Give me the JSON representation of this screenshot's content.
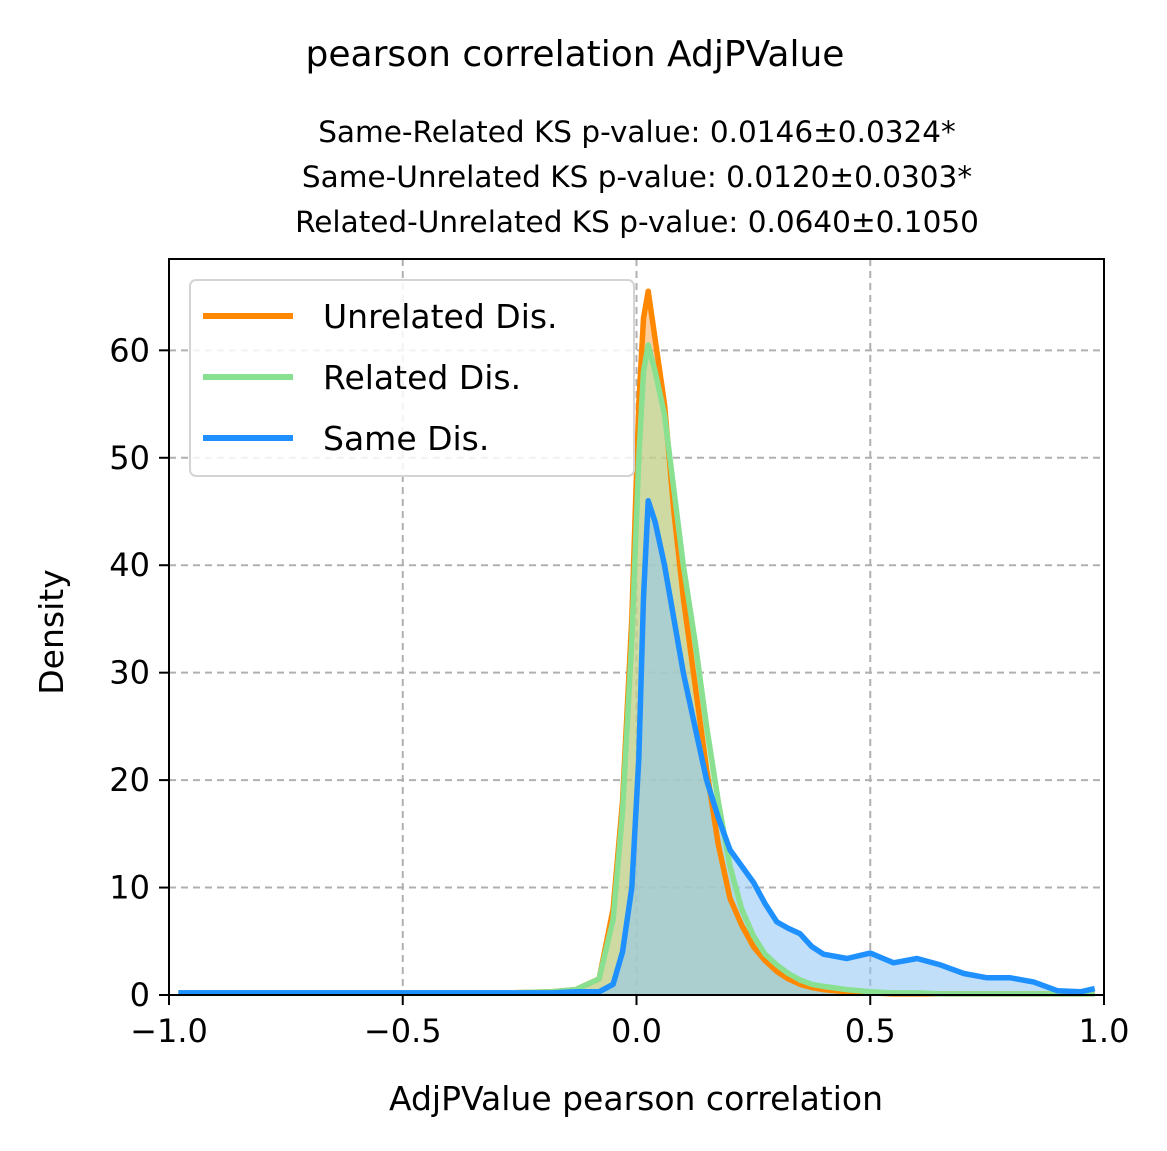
{
  "chart_data": {
    "type": "area",
    "title": "pearson correlation AdjPValue",
    "subtitle_lines": [
      "Same-Related KS p-value: 0.0146±0.0324*",
      "Same-Unrelated KS p-value: 0.0120±0.0303*",
      "Related-Unrelated KS p-value: 0.0640±0.1050"
    ],
    "xlabel": "AdjPValue pearson correlation",
    "ylabel": "Density",
    "xlim": [
      -1.0,
      1.0
    ],
    "ylim": [
      0,
      68.5
    ],
    "xticks": [
      -1.0,
      -0.5,
      0.0,
      0.5,
      1.0
    ],
    "xtick_labels": [
      "−1.0",
      "−0.5",
      "0.0",
      "0.5",
      "1.0"
    ],
    "yticks": [
      0,
      10,
      20,
      30,
      40,
      50,
      60
    ],
    "ytick_labels": [
      "0",
      "10",
      "20",
      "30",
      "40",
      "50",
      "60"
    ],
    "grid": true,
    "legend_position": "top-left",
    "series": [
      {
        "name": "Unrelated Dis.",
        "color": "#ff8800",
        "fill": "#ffa54f",
        "x": [
          -0.98,
          -0.88,
          -0.78,
          -0.68,
          -0.58,
          -0.48,
          -0.38,
          -0.28,
          -0.18,
          -0.13,
          -0.08,
          -0.05,
          -0.03,
          -0.01,
          0.005,
          0.015,
          0.025,
          0.04,
          0.06,
          0.08,
          0.1,
          0.125,
          0.15,
          0.175,
          0.2,
          0.225,
          0.25,
          0.275,
          0.3,
          0.325,
          0.35,
          0.375,
          0.4,
          0.45,
          0.5,
          0.55,
          0.6,
          0.65,
          0.7,
          0.75,
          0.8,
          0.85,
          0.9,
          0.95,
          0.98
        ],
        "y": [
          0.2,
          0.2,
          0.2,
          0.2,
          0.2,
          0.2,
          0.2,
          0.2,
          0.3,
          0.5,
          1.5,
          8,
          18,
          35,
          55,
          63,
          65.5,
          61,
          55,
          45,
          37,
          29,
          21,
          14,
          9,
          6.5,
          4.5,
          3.2,
          2.2,
          1.5,
          1.0,
          0.7,
          0.5,
          0.3,
          0.2,
          0.1,
          0.1,
          0.1,
          0.1,
          0.1,
          0.1,
          0.1,
          0.1,
          0.1,
          0.1
        ]
      },
      {
        "name": "Related Dis.",
        "color": "#88e090",
        "fill": "#a8e4a8",
        "x": [
          -0.98,
          -0.88,
          -0.78,
          -0.68,
          -0.58,
          -0.48,
          -0.38,
          -0.28,
          -0.18,
          -0.13,
          -0.08,
          -0.05,
          -0.03,
          -0.01,
          0.005,
          0.015,
          0.025,
          0.04,
          0.06,
          0.08,
          0.1,
          0.125,
          0.15,
          0.175,
          0.2,
          0.225,
          0.25,
          0.275,
          0.3,
          0.325,
          0.35,
          0.375,
          0.4,
          0.45,
          0.5,
          0.55,
          0.6,
          0.65,
          0.7,
          0.75,
          0.8,
          0.85,
          0.9,
          0.95,
          0.98
        ],
        "y": [
          0.2,
          0.2,
          0.2,
          0.2,
          0.2,
          0.2,
          0.2,
          0.2,
          0.3,
          0.5,
          1.5,
          7,
          17,
          33,
          50,
          58,
          60.5,
          58,
          54,
          47,
          40,
          33,
          25,
          18,
          12,
          8,
          5.5,
          3.8,
          2.8,
          2.0,
          1.4,
          1.0,
          0.8,
          0.5,
          0.3,
          0.2,
          0.2,
          0.1,
          0.1,
          0.1,
          0.1,
          0.1,
          0.1,
          0.1,
          0.1
        ]
      },
      {
        "name": "Same Dis.",
        "color": "#1e90ff",
        "fill": "#8ec4f4",
        "x": [
          -0.98,
          -0.88,
          -0.78,
          -0.68,
          -0.58,
          -0.48,
          -0.38,
          -0.28,
          -0.18,
          -0.13,
          -0.08,
          -0.05,
          -0.03,
          -0.01,
          0.005,
          0.015,
          0.025,
          0.04,
          0.06,
          0.08,
          0.1,
          0.125,
          0.15,
          0.175,
          0.2,
          0.225,
          0.25,
          0.275,
          0.3,
          0.325,
          0.35,
          0.375,
          0.4,
          0.45,
          0.5,
          0.55,
          0.6,
          0.65,
          0.7,
          0.75,
          0.8,
          0.85,
          0.9,
          0.95,
          0.98
        ],
        "y": [
          0.2,
          0.2,
          0.2,
          0.2,
          0.2,
          0.2,
          0.2,
          0.2,
          0.2,
          0.3,
          0.3,
          1.0,
          4,
          10,
          22,
          37,
          46,
          44,
          40,
          35,
          30,
          25,
          20,
          16.5,
          13.5,
          12,
          10.5,
          8.5,
          6.8,
          6.2,
          5.7,
          4.5,
          3.8,
          3.4,
          3.9,
          3.0,
          3.4,
          2.8,
          2.0,
          1.6,
          1.6,
          1.2,
          0.4,
          0.3,
          0.6
        ]
      }
    ]
  }
}
